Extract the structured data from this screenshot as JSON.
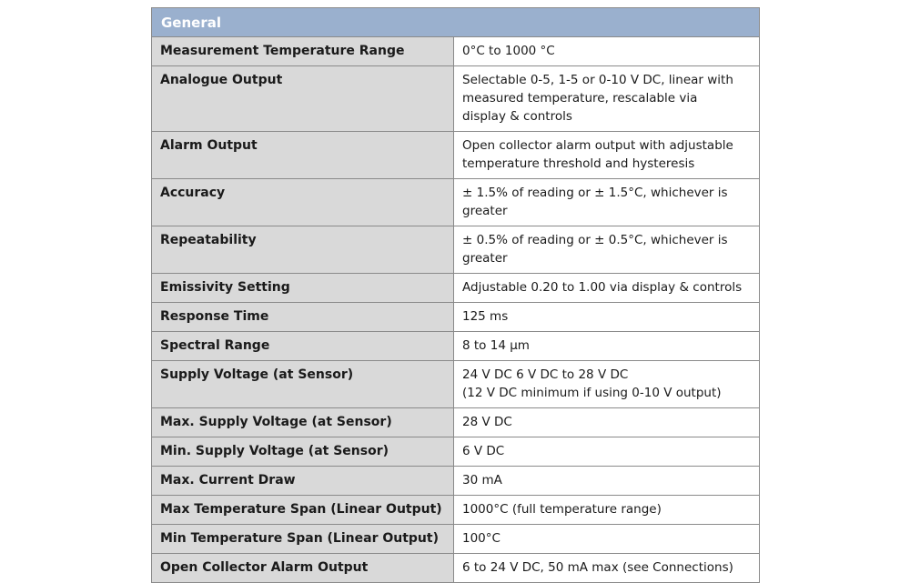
{
  "section_title": "General",
  "rows": [
    {
      "label": "Measurement Temperature Range",
      "value": [
        "0°C to 1000 °C"
      ]
    },
    {
      "label": "Analogue Output",
      "value": [
        "Selectable 0-5, 1-5 or 0-10 V DC, linear with",
        "measured temperature, rescalable via",
        "display & controls"
      ]
    },
    {
      "label": "Alarm Output",
      "value": [
        "Open collector alarm output with adjustable",
        "temperature threshold and hysteresis"
      ]
    },
    {
      "label": "Accuracy",
      "value": [
        "± 1.5% of reading or ± 1.5°C, whichever is",
        "greater"
      ]
    },
    {
      "label": "Repeatability",
      "value": [
        "± 0.5% of reading or ± 0.5°C, whichever is",
        "greater"
      ]
    },
    {
      "label": "Emissivity Setting",
      "value": [
        "Adjustable 0.20 to 1.00 via display & controls"
      ]
    },
    {
      "label": "Response Time",
      "value": [
        "125 ms"
      ]
    },
    {
      "label": "Spectral Range",
      "value": [
        "8 to 14 μm"
      ]
    },
    {
      "label": "Supply Voltage (at Sensor)",
      "value": [
        "24 V DC 6 V DC to 28 V DC",
        "(12 V DC minimum if using 0-10 V output)"
      ]
    },
    {
      "label": "Max. Supply Voltage (at Sensor)",
      "value": [
        "28 V DC"
      ]
    },
    {
      "label": "Min. Supply Voltage (at Sensor)",
      "value": [
        "6 V DC"
      ]
    },
    {
      "label": "Max. Current Draw",
      "value": [
        "30 mA"
      ]
    },
    {
      "label": "Max Temperature Span (Linear Output)",
      "value": [
        "1000°C (full temperature range)"
      ]
    },
    {
      "label": "Min Temperature Span (Linear Output)",
      "value": [
        "100°C"
      ]
    },
    {
      "label": "Open Collector Alarm Output",
      "value": [
        "6 to 24 V DC, 50 mA max (see Connections)"
      ]
    }
  ]
}
